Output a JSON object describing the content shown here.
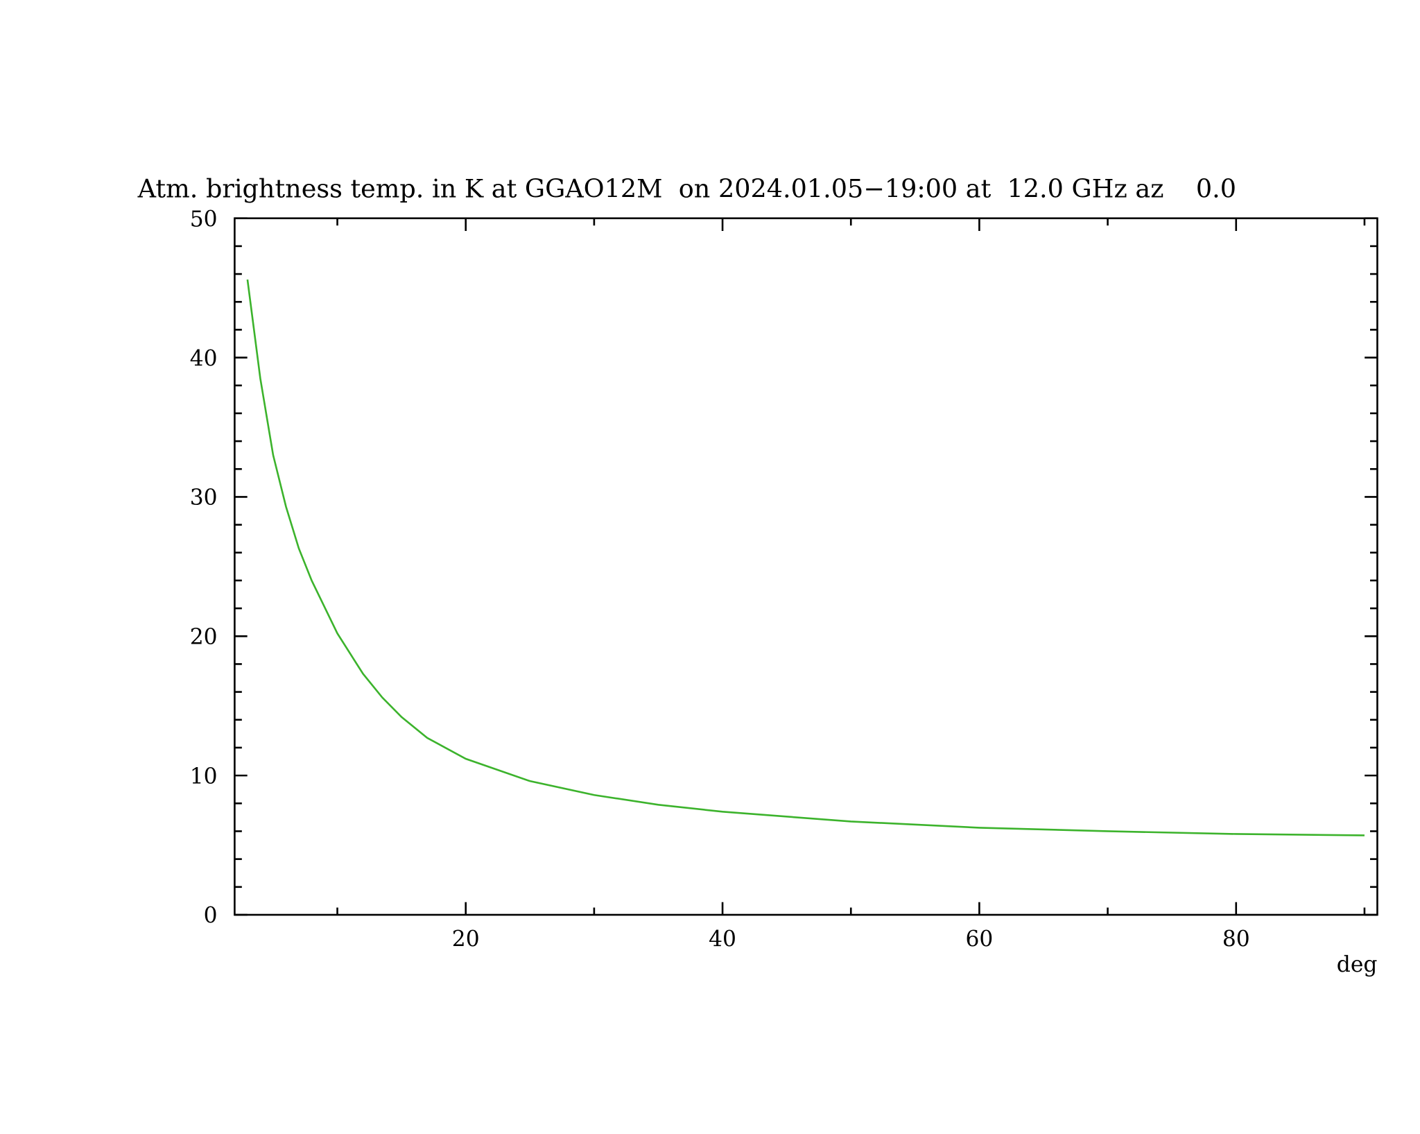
{
  "chart_data": {
    "type": "line",
    "title": "Atm. brightness temp. in K at GGAO12M  on 2024.01.05−19:00 at  12.0 GHz az    0.0",
    "x_label": "deg",
    "x": [
      3,
      4,
      5,
      6,
      7,
      8,
      10,
      12,
      13.5,
      15,
      17,
      20,
      25,
      30,
      35,
      40,
      50,
      60,
      70,
      80,
      90
    ],
    "series": [
      {
        "color": "#3cb32c",
        "values": [
          45.6,
          38.5,
          33.0,
          29.3,
          26.3,
          24.0,
          20.2,
          17.3,
          15.6,
          14.2,
          12.7,
          11.2,
          9.6,
          8.6,
          7.9,
          7.4,
          6.7,
          6.25,
          6.0,
          5.8,
          5.7
        ]
      }
    ],
    "xlim": [
      2,
      91
    ],
    "ylim": [
      0,
      50
    ],
    "xticks": [
      20,
      40,
      60,
      80
    ],
    "yticks": [
      0,
      10,
      20,
      30,
      40,
      50
    ],
    "xminorticks": [
      10,
      30,
      50,
      70,
      90
    ],
    "yminorticks": [
      2,
      4,
      6,
      8,
      12,
      14,
      16,
      18,
      22,
      24,
      26,
      28,
      32,
      34,
      36,
      38,
      42,
      44,
      46,
      48
    ]
  }
}
